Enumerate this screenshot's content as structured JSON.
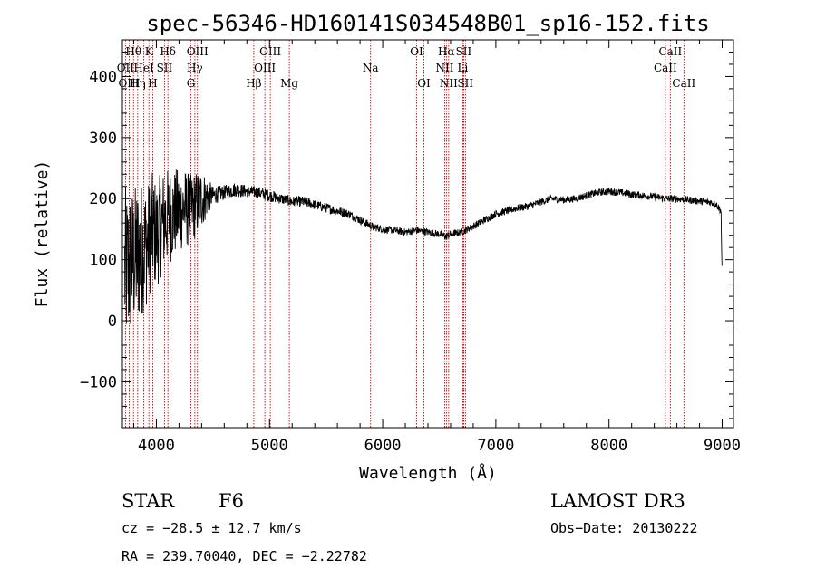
{
  "chart_data": {
    "type": "line",
    "title": "spec-56346-HD160141S034548B01_sp16-152.fits",
    "xlabel": "Wavelength (Å)",
    "ylabel": "Flux (relative)",
    "xlim": [
      3700,
      9100
    ],
    "ylim": [
      -175,
      460
    ],
    "x_ticks": [
      4000,
      5000,
      6000,
      7000,
      8000,
      9000
    ],
    "x_tick_labels": [
      "4000",
      "5000",
      "6000",
      "7000",
      "8000",
      "9000"
    ],
    "y_ticks": [
      -100,
      0,
      100,
      200,
      300,
      400
    ],
    "y_tick_labels": [
      "−100",
      "0",
      "100",
      "200",
      "300",
      "400"
    ],
    "series": [
      {
        "name": "Flux",
        "x": [
          3720,
          3760,
          3800,
          3840,
          3880,
          3920,
          3960,
          4000,
          4050,
          4100,
          4150,
          4200,
          4250,
          4300,
          4350,
          4400,
          4500,
          4600,
          4700,
          4800,
          4900,
          5000,
          5100,
          5200,
          5300,
          5400,
          5500,
          5600,
          5700,
          5800,
          5900,
          6000,
          6100,
          6200,
          6300,
          6400,
          6500,
          6560,
          6600,
          6700,
          6800,
          6900,
          7000,
          7100,
          7200,
          7300,
          7400,
          7500,
          7600,
          7700,
          7800,
          7900,
          8000,
          8100,
          8200,
          8300,
          8400,
          8500,
          8600,
          8700,
          8800,
          8900,
          8950,
          8990,
          9000
        ],
        "y": [
          80,
          90,
          100,
          110,
          120,
          125,
          150,
          140,
          160,
          170,
          175,
          180,
          185,
          180,
          190,
          200,
          205,
          210,
          215,
          212,
          210,
          205,
          200,
          195,
          195,
          190,
          185,
          180,
          175,
          165,
          155,
          150,
          148,
          145,
          148,
          145,
          142,
          138,
          142,
          145,
          155,
          165,
          175,
          180,
          185,
          188,
          195,
          200,
          198,
          200,
          205,
          210,
          212,
          210,
          207,
          205,
          203,
          200,
          200,
          198,
          196,
          194,
          190,
          180,
          60
        ],
        "noise": [
          140,
          130,
          120,
          120,
          110,
          100,
          95,
          90,
          85,
          80,
          75,
          70,
          65,
          60,
          55,
          50,
          15,
          12,
          12,
          10,
          10,
          10,
          9,
          9,
          9,
          8,
          8,
          8,
          7,
          7,
          7,
          6,
          6,
          6,
          6,
          6,
          6,
          7,
          6,
          6,
          6,
          6,
          6,
          6,
          6,
          6,
          6,
          6,
          6,
          6,
          6,
          6,
          6,
          6,
          6,
          6,
          6,
          6,
          6,
          6,
          6,
          6,
          6,
          6,
          6
        ]
      }
    ],
    "spectral_lines": [
      {
        "label": "Hθ",
        "wavelength": 3798,
        "row": 0
      },
      {
        "label": "K",
        "wavelength": 3934,
        "row": 0
      },
      {
        "label": "Hδ",
        "wavelength": 4102,
        "row": 0
      },
      {
        "label": "OIII",
        "wavelength": 4363,
        "row": 0
      },
      {
        "label": "OIII",
        "wavelength": 5007,
        "row": 0
      },
      {
        "label": "OI",
        "wavelength": 6300,
        "row": 0
      },
      {
        "label": "Hα",
        "wavelength": 6563,
        "row": 0
      },
      {
        "label": "SII",
        "wavelength": 6716,
        "row": 0
      },
      {
        "label": "CaII",
        "wavelength": 8542,
        "row": 0
      },
      {
        "label": "OII",
        "wavelength": 3727,
        "row": 1
      },
      {
        "label": "HeI",
        "wavelength": 3889,
        "row": 1
      },
      {
        "label": "SII",
        "wavelength": 4072,
        "row": 1
      },
      {
        "label": "Hγ",
        "wavelength": 4340,
        "row": 1
      },
      {
        "label": "OIII",
        "wavelength": 4959,
        "row": 1
      },
      {
        "label": "Na",
        "wavelength": 5893,
        "row": 1
      },
      {
        "label": "NII",
        "wavelength": 6548,
        "row": 1
      },
      {
        "label": "Li",
        "wavelength": 6708,
        "row": 1
      },
      {
        "label": "CaII",
        "wavelength": 8498,
        "row": 1
      },
      {
        "label": "OIII",
        "wavelength": 3760,
        "row": 2
      },
      {
        "label": "Hη",
        "wavelength": 3835,
        "row": 2
      },
      {
        "label": "H",
        "wavelength": 3968,
        "row": 2
      },
      {
        "label": "G",
        "wavelength": 4305,
        "row": 2
      },
      {
        "label": "Hβ",
        "wavelength": 4861,
        "row": 2
      },
      {
        "label": "Mg",
        "wavelength": 5175,
        "row": 2
      },
      {
        "label": "OI",
        "wavelength": 6364,
        "row": 2
      },
      {
        "label": "NII",
        "wavelength": 6583,
        "row": 2
      },
      {
        "label": "SII",
        "wavelength": 6731,
        "row": 2
      },
      {
        "label": "CaII",
        "wavelength": 8662,
        "row": 2
      }
    ]
  },
  "info": {
    "object_type": "STAR",
    "subclass": "F6",
    "survey": "LAMOST DR3",
    "cz": "cz = −28.5 ± 12.7 km/s",
    "obs_date": "Obs−Date: 20130222",
    "radec": "RA = 239.70040, DEC =  −2.22782"
  },
  "colors": {
    "line_marker": "#cc0000",
    "spectrum": "#000000",
    "axes": "#000000"
  }
}
